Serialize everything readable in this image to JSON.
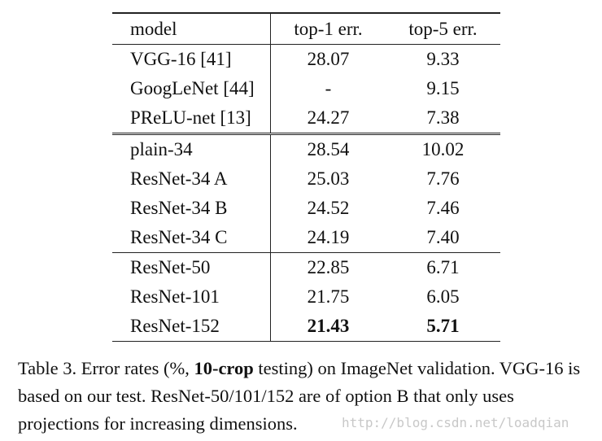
{
  "table": {
    "headers": [
      "model",
      "top-1 err.",
      "top-5 err."
    ],
    "groups": [
      [
        {
          "model": "VGG-16 [41]",
          "top1": "28.07",
          "top5": "9.33"
        },
        {
          "model": "GoogLeNet [44]",
          "top1": "-",
          "top5": "9.15"
        },
        {
          "model": "PReLU-net [13]",
          "top1": "24.27",
          "top5": "7.38"
        }
      ],
      [
        {
          "model": "plain-34",
          "top1": "28.54",
          "top5": "10.02"
        },
        {
          "model": "ResNet-34 A",
          "top1": "25.03",
          "top5": "7.76"
        },
        {
          "model": "ResNet-34 B",
          "top1": "24.52",
          "top5": "7.46"
        },
        {
          "model": "ResNet-34 C",
          "top1": "24.19",
          "top5": "7.40"
        }
      ],
      [
        {
          "model": "ResNet-50",
          "top1": "22.85",
          "top5": "6.71"
        },
        {
          "model": "ResNet-101",
          "top1": "21.75",
          "top5": "6.05"
        },
        {
          "model": "ResNet-152",
          "top1": "21.43",
          "top5": "5.71",
          "bold": true
        }
      ]
    ]
  },
  "caption": {
    "prefix": "Table 3. Error rates (%, ",
    "bold": "10-crop",
    "suffix": " testing) on ImageNet validation. VGG-16 is based on our test. ResNet-50/101/152 are of option B that only uses projections for increasing dimensions."
  },
  "watermark": "http://blog.csdn.net/loadqian"
}
